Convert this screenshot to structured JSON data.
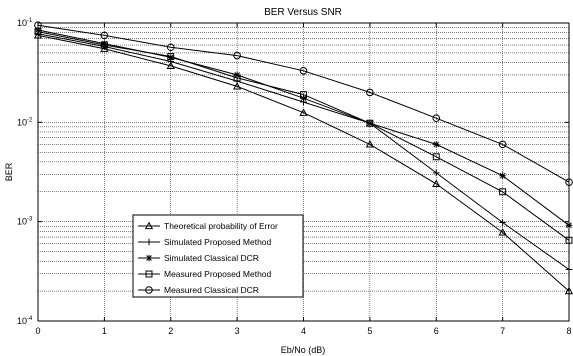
{
  "chart_data": {
    "type": "line",
    "title": "BER Versus SNR",
    "xlabel": "Eb/No (dB)",
    "ylabel": "BER",
    "x": [
      0,
      1,
      2,
      3,
      4,
      5,
      6,
      7,
      8
    ],
    "xlim": [
      0,
      8
    ],
    "ylim": [
      0.0001,
      0.1
    ],
    "yscale": "log",
    "grid": true,
    "legend_position": "bottom-left",
    "x_tick_labels": [
      "0",
      "1",
      "2",
      "3",
      "4",
      "5",
      "6",
      "7",
      "8"
    ],
    "y_tick_labels": [
      {
        "value": 0.1,
        "mantissa": "10",
        "exponent": "-1"
      },
      {
        "value": 0.01,
        "mantissa": "10",
        "exponent": "-2"
      },
      {
        "value": 0.001,
        "mantissa": "10",
        "exponent": "-3"
      },
      {
        "value": 0.0001,
        "mantissa": "10",
        "exponent": "-4"
      }
    ],
    "series": [
      {
        "name": "Theoretical probability of Error",
        "marker": "triangle",
        "values": [
          0.075,
          0.055,
          0.037,
          0.023,
          0.0125,
          0.006,
          0.0024,
          0.00078,
          0.0002
        ]
      },
      {
        "name": "Simulated Proposed Method",
        "marker": "plus",
        "values": [
          0.078,
          0.058,
          0.041,
          0.026,
          0.016,
          0.0098,
          0.0031,
          0.00098,
          0.00033
        ]
      },
      {
        "name": "Simulated Classical DCR",
        "marker": "star",
        "values": [
          0.085,
          0.062,
          0.045,
          0.03,
          0.0175,
          0.0098,
          0.006,
          0.0029,
          0.00092
        ]
      },
      {
        "name": "Measured Proposed Method",
        "marker": "square",
        "values": [
          0.082,
          0.06,
          0.046,
          0.028,
          0.019,
          0.0098,
          0.0045,
          0.002,
          0.00065
        ]
      },
      {
        "name": "Measured Classical DCR",
        "marker": "circle",
        "values": [
          0.095,
          0.075,
          0.057,
          0.047,
          0.033,
          0.02,
          0.011,
          0.006,
          0.0025
        ]
      }
    ]
  }
}
